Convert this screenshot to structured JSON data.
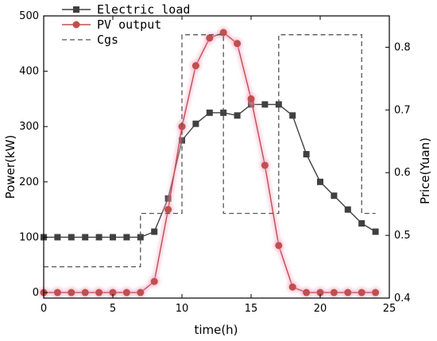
{
  "chart_data": {
    "type": "line",
    "xlabel": "time(h)",
    "ylabel": "Power(kW)",
    "y2label": "Price(Yuan)",
    "xlim": [
      0,
      25
    ],
    "ylim": [
      -10,
      500
    ],
    "y2lim": [
      0.4,
      0.85
    ],
    "xticks": [
      0,
      5,
      10,
      15,
      20,
      25
    ],
    "yticks": [
      0,
      100,
      200,
      300,
      400,
      500
    ],
    "y2ticks": [
      0.4,
      0.5,
      0.6,
      0.7,
      0.8
    ],
    "legend_position": "top-left",
    "grid": false,
    "series": [
      {
        "name": "Electric load",
        "axis": "left",
        "color": "#404040",
        "marker": "square",
        "x": [
          0,
          1,
          2,
          3,
          4,
          5,
          6,
          7,
          8,
          9,
          10,
          11,
          12,
          13,
          14,
          15,
          16,
          17,
          18,
          19,
          20,
          21,
          22,
          23,
          24
        ],
        "values": [
          100,
          100,
          100,
          100,
          100,
          100,
          100,
          100,
          110,
          170,
          275,
          305,
          325,
          325,
          320,
          340,
          340,
          340,
          320,
          250,
          200,
          175,
          150,
          125,
          110
        ]
      },
      {
        "name": "PV output",
        "axis": "left",
        "color": "#c0504d",
        "marker": "circle",
        "x": [
          0,
          1,
          2,
          3,
          4,
          5,
          6,
          7,
          8,
          9,
          10,
          11,
          12,
          13,
          14,
          15,
          16,
          17,
          18,
          19,
          20,
          21,
          22,
          23,
          24
        ],
        "values": [
          0,
          0,
          0,
          0,
          0,
          0,
          0,
          0,
          20,
          150,
          300,
          410,
          460,
          470,
          450,
          350,
          230,
          85,
          10,
          0,
          0,
          0,
          0,
          0,
          0
        ]
      },
      {
        "name": "Cgs",
        "axis": "right",
        "color": "#555555",
        "style": "dashed-step",
        "x": [
          0,
          7,
          7,
          10,
          10,
          13,
          13,
          17,
          17,
          23,
          23,
          24
        ],
        "values": [
          0.45,
          0.45,
          0.535,
          0.535,
          0.82,
          0.82,
          0.535,
          0.535,
          0.82,
          0.82,
          0.535,
          0.535
        ]
      }
    ]
  }
}
